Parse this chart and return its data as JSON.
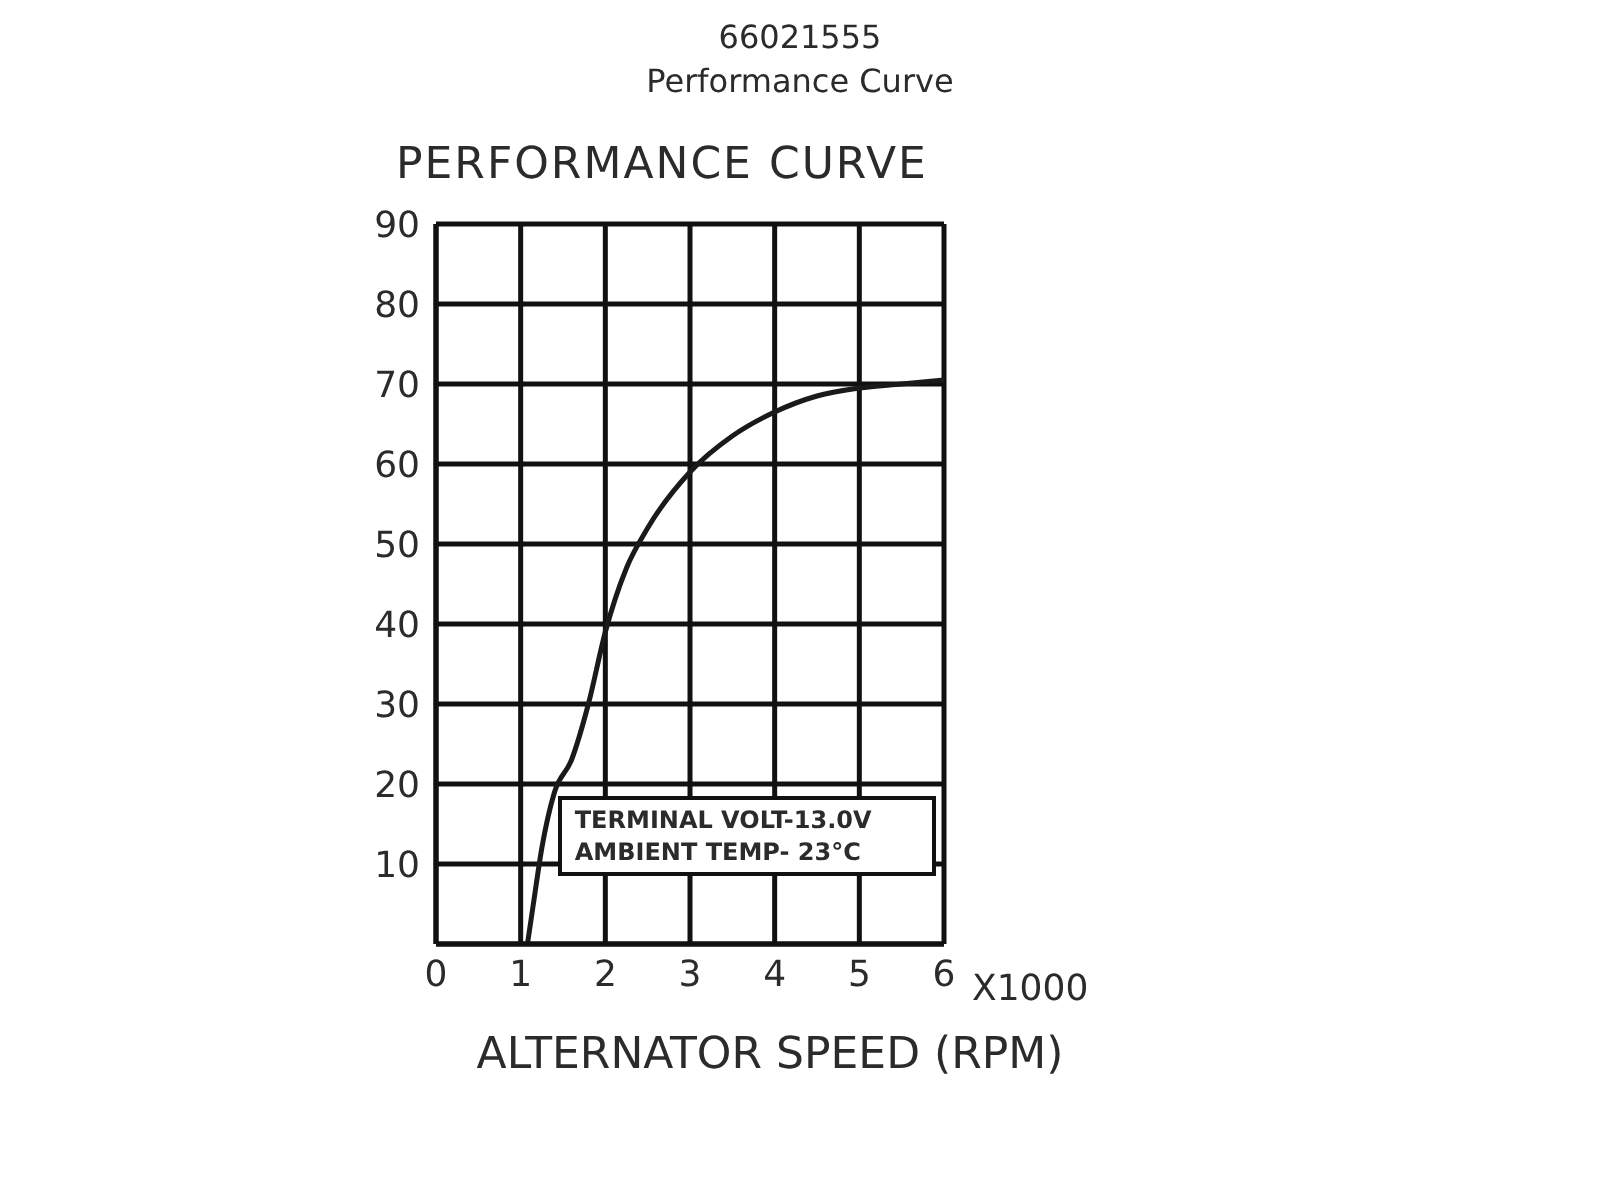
{
  "chart_data": {
    "type": "line",
    "title": "66021555",
    "subtitle": "Performance Curve",
    "annotations": [
      "PERFORMANCE CURVE",
      "X1000",
      "TERMINAL VOLT-13.0V",
      "AMBIENT TEMP- 23°C"
    ],
    "xlabel": "ALTERNATOR SPEED (RPM)",
    "x": [
      1.08,
      1.15,
      1.25,
      1.4,
      1.6,
      1.8,
      2,
      2.25,
      2.5,
      3,
      3.5,
      4,
      4.5,
      5,
      5.5,
      6
    ],
    "series": [
      {
        "color": "#1a1a1a",
        "values": [
          0,
          5,
          12,
          19,
          23,
          30,
          39,
          47,
          52,
          59,
          63.5,
          66.5,
          68.5,
          69.5,
          70,
          70.5
        ]
      }
    ],
    "xlim": [
      0,
      6
    ],
    "xticks": [
      0,
      1,
      2,
      3,
      4,
      5,
      6
    ],
    "ylim": [
      0,
      90
    ],
    "yticks": [
      {
        "value": 0,
        "label": null
      },
      10,
      20,
      30,
      40,
      50,
      60,
      70,
      80,
      90
    ],
    "grid": true,
    "legend": false,
    "marker": "none",
    "line_style": "solid"
  }
}
